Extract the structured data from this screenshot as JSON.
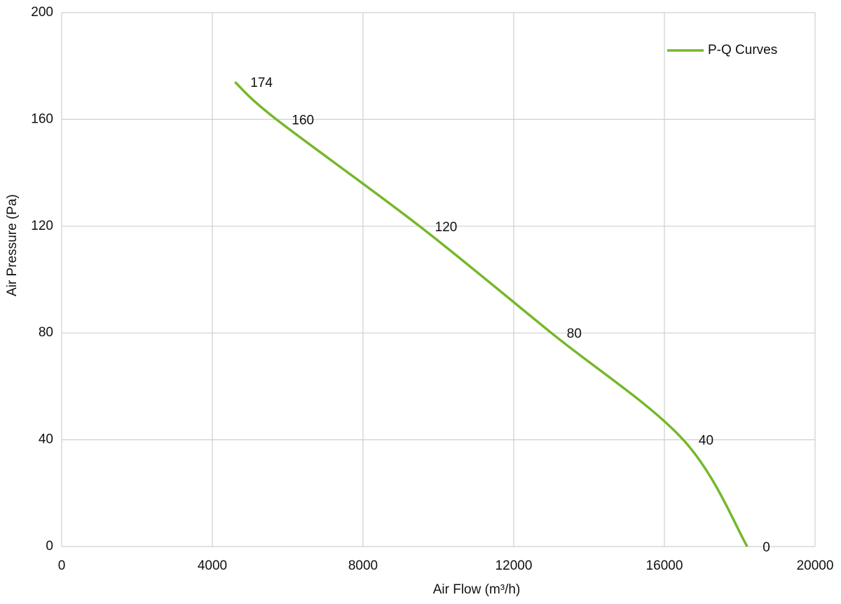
{
  "chart_data": {
    "type": "line",
    "xlabel": "Air Flow  (m³/h)",
    "ylabel": "Air Pressure  (Pa)",
    "x": [
      4600,
      5700,
      9500,
      13000,
      16500,
      18200
    ],
    "series": [
      {
        "name": "P-Q Curves",
        "color": "#76b82a",
        "values": [
          174,
          160,
          120,
          80,
          40,
          0
        ]
      }
    ],
    "xlim": [
      0,
      20000
    ],
    "xticks": [
      0,
      4000,
      8000,
      12000,
      16000,
      20000
    ],
    "ylim": [
      0,
      200
    ],
    "yticks": [
      0,
      40,
      80,
      120,
      160,
      200
    ],
    "grid": true,
    "legend": "upper right"
  }
}
